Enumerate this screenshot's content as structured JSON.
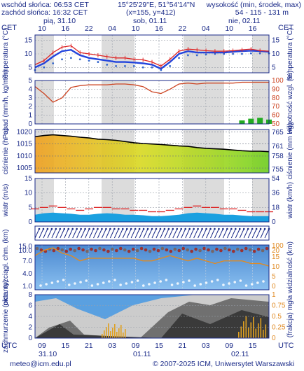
{
  "header": {
    "sunrise": "wschód słońca: 06:53 CET",
    "sunset": "zachód słońca: 16:32 CET",
    "coords": "15°25'29\"E, 51°54'14\"N",
    "grid": "(x=155, y=412)",
    "altitude_label": "wysokość (min, środek, max)",
    "altitude_values": "54 - 115 - 131 m"
  },
  "timeline": {
    "cet": "CET",
    "utc": "UTC",
    "day_labels": [
      "pią, 31.10",
      "sob, 01.11",
      "nie, 02.11"
    ],
    "top_hours": [
      "10",
      "16",
      "22",
      "04",
      "10",
      "16",
      "22",
      "04",
      "10",
      "16"
    ],
    "bottom_hours": [
      "09",
      "15",
      "21",
      "03",
      "09",
      "15",
      "21",
      "03",
      "09",
      "15"
    ],
    "bottom_dates": [
      "31.10",
      "01.11",
      "02.11"
    ]
  },
  "colors": {
    "temp_max": "#dd2222",
    "temp_mean": "#2244dd",
    "dew_point": "#3366cc",
    "humidity": "#cc4422",
    "precip": "#22aa22",
    "pressure_line": "#000000",
    "wind_gust": "#dd2222",
    "wind_fill": "#1aa0e0",
    "visibility": "#e08a22",
    "cloud_top": "#888888"
  },
  "chart_data": [
    {
      "type": "line",
      "panel": "temperature",
      "ylabel_left": "temperatura (°C)",
      "ylabel_right": "temperatura (°C)",
      "yticks": [
        5,
        10,
        15
      ],
      "ylim": [
        3,
        17
      ],
      "x": [
        0,
        1,
        2,
        3,
        4,
        5,
        6,
        7,
        8,
        9,
        10,
        11,
        12,
        13,
        14,
        15,
        16,
        17,
        18,
        19,
        20,
        21,
        22,
        23,
        24,
        25,
        26
      ],
      "series": [
        {
          "values": [
            6.0,
            7.5,
            10.5,
            12.5,
            13.0,
            10.5,
            10.0,
            9.5,
            9.0,
            8.5,
            8.5,
            8.0,
            7.8,
            7.0,
            5.5,
            8.0,
            11.0,
            11.8,
            11.5,
            11.2,
            11.0,
            11.0,
            11.2,
            11.5,
            11.8,
            11.2,
            11.0
          ]
        },
        {
          "values": [
            5.0,
            6.5,
            9.0,
            11.0,
            11.5,
            9.5,
            8.5,
            8.0,
            7.5,
            7.0,
            7.0,
            6.8,
            6.5,
            6.0,
            4.5,
            7.0,
            10.0,
            11.0,
            10.5,
            10.5,
            10.5,
            10.5,
            10.8,
            11.0,
            11.2,
            11.0,
            10.8
          ]
        },
        {
          "values": [
            4.0,
            5.0,
            6.5,
            8.0,
            8.5,
            8.0,
            7.5,
            7.0,
            6.0,
            5.5,
            5.5,
            5.5,
            5.0,
            5.0,
            4.0,
            5.5,
            8.5,
            9.5,
            9.5,
            9.8,
            10.0,
            10.0,
            10.0,
            10.0,
            10.2,
            10.2,
            10.2
          ]
        }
      ]
    },
    {
      "type": "line",
      "panel": "precipitation_humidity",
      "ylabel_left": "opad (mm/h, kg/m²h)",
      "ylabel_right": "wilgotność wzgl. (%)",
      "yticks_left": [
        0,
        1,
        2,
        3,
        4,
        5
      ],
      "yticks_right": [
        50,
        60,
        70,
        80,
        90,
        100
      ],
      "ylim_left": [
        0,
        5
      ],
      "ylim_right": [
        50,
        100
      ],
      "x": [
        0,
        1,
        2,
        3,
        4,
        5,
        6,
        7,
        8,
        9,
        10,
        11,
        12,
        13,
        14,
        15,
        16,
        17,
        18,
        19,
        20,
        21,
        22,
        23,
        24,
        25,
        26
      ],
      "series": [
        {
          "values": [
            93,
            85,
            75,
            80,
            92,
            94,
            95,
            95,
            95,
            96,
            96,
            95,
            93,
            87,
            85,
            90,
            96,
            97,
            96,
            97,
            97,
            97,
            97,
            98,
            98,
            98,
            98
          ]
        },
        {
          "values": [
            0,
            0,
            0,
            0,
            0,
            0,
            0,
            0,
            0,
            0,
            0,
            0,
            0,
            0,
            0,
            0,
            0,
            0,
            0,
            0,
            0,
            0,
            0,
            0.4,
            0.6,
            0.7,
            0.5
          ]
        }
      ]
    },
    {
      "type": "line",
      "panel": "pressure",
      "ylabel_left": "ciśnienie (hPa)",
      "ylabel_right": "ciśnienie (mm Hg)",
      "yticks_left": [
        1005,
        1010,
        1015,
        1020
      ],
      "yticks_right": [
        755,
        758,
        761,
        765
      ],
      "ylim": [
        1003,
        1021
      ],
      "x": [
        0,
        1,
        2,
        3,
        4,
        5,
        6,
        7,
        8,
        9,
        10,
        11,
        12,
        13,
        14,
        15,
        16,
        17,
        18,
        19,
        20,
        21,
        22,
        23,
        24,
        25,
        26
      ],
      "series": [
        {
          "values": [
            1018.0,
            1018.5,
            1018.8,
            1018.5,
            1018.2,
            1017.8,
            1017.5,
            1017.0,
            1016.8,
            1016.5,
            1016.0,
            1015.5,
            1015.2,
            1015.0,
            1014.8,
            1014.5,
            1014.2,
            1014.0,
            1013.5,
            1013.2,
            1013.0,
            1012.8,
            1012.5,
            1012.2,
            1012.0,
            1012.0,
            1011.8
          ]
        }
      ]
    },
    {
      "type": "area",
      "panel": "wind",
      "ylabel_left": "wiatr (m/s)",
      "ylabel_right": "wiatr (km/h)",
      "yticks_left": [
        0,
        5,
        10,
        15
      ],
      "yticks_right": [
        0,
        18,
        36,
        54
      ],
      "ylim": [
        0,
        15
      ],
      "x": [
        0,
        1,
        2,
        3,
        4,
        5,
        6,
        7,
        8,
        9,
        10,
        11,
        12,
        13,
        14,
        15,
        16,
        17,
        18,
        19,
        20,
        21,
        22,
        23,
        24,
        25,
        26
      ],
      "series": [
        {
          "values": [
            4.5,
            5.0,
            5.5,
            5.0,
            4.5,
            4.0,
            4.5,
            5.0,
            5.0,
            4.5,
            4.5,
            4.0,
            4.0,
            3.5,
            3.5,
            4.0,
            4.5,
            5.0,
            5.5,
            5.0,
            5.0,
            4.5,
            4.5,
            4.0,
            3.5,
            3.5,
            3.5
          ]
        },
        {
          "values": [
            2.5,
            3.0,
            3.2,
            3.0,
            2.8,
            2.5,
            2.5,
            2.8,
            3.0,
            2.8,
            2.5,
            2.5,
            2.3,
            2.0,
            2.0,
            2.2,
            2.5,
            3.0,
            3.2,
            3.0,
            2.8,
            2.5,
            2.5,
            2.2,
            2.0,
            2.0,
            2.0
          ]
        }
      ]
    },
    {
      "type": "line",
      "panel": "cloud_base_visibility",
      "ylabel_left": "pion. rozciągł. chm. (km)",
      "ylabel_right": "widzialność (km)",
      "yticks_left": [
        1.0,
        4.0,
        7.0,
        10.0,
        15.0
      ],
      "yticks_right": [
        0,
        5,
        10,
        15,
        20,
        100
      ],
      "x": [
        0,
        1,
        2,
        3,
        4,
        5,
        6,
        7,
        8,
        9,
        10,
        11,
        12,
        13,
        14,
        15,
        16,
        17,
        18,
        19,
        20,
        21,
        22,
        23,
        24,
        25,
        26
      ],
      "series": [
        {
          "values": [
            12,
            14,
            15,
            13,
            12,
            10,
            11,
            11,
            11,
            11,
            11,
            11,
            10,
            10,
            11,
            12,
            11,
            10,
            11,
            10,
            9,
            10,
            10,
            10,
            9,
            9,
            8
          ]
        }
      ]
    },
    {
      "type": "area",
      "panel": "cloud_cover",
      "ylabel_left": "zachmurzenie (oktanty)",
      "ylabel_right": "(frakcja) mgła",
      "yticks_left": [
        0,
        2,
        4,
        6,
        8
      ],
      "yticks_right": [
        0,
        0.25,
        0.5,
        0.75,
        1
      ],
      "ylim": [
        0,
        8
      ]
    }
  ],
  "footer": {
    "email": "meteo@icm.edu.pl",
    "copyright": "© 2007-2025 ICM, Uniwersytet Warszawski"
  }
}
